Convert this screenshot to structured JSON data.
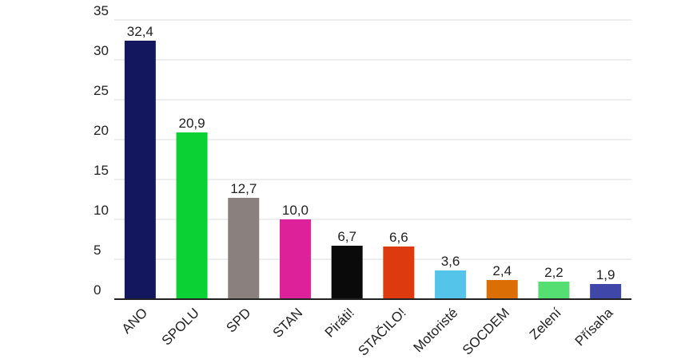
{
  "chart_data": {
    "type": "bar",
    "categories": [
      "ANO",
      "SPOLU",
      "SPD",
      "STAN",
      "Piráti!",
      "STAČILO!",
      "Motoristé",
      "SOCDEM",
      "Zelení",
      "Přísaha"
    ],
    "values": [
      32.4,
      20.9,
      12.7,
      10.0,
      6.7,
      6.6,
      3.6,
      2.4,
      2.2,
      1.9
    ],
    "value_labels": [
      "32,4",
      "20,9",
      "12,7",
      "10,0",
      "6,7",
      "6,6",
      "3,6",
      "2,4",
      "2,2",
      "1,9"
    ],
    "colors": [
      "#13175e",
      "#0bd135",
      "#8a807d",
      "#dd2198",
      "#0a0a0a",
      "#de3a0f",
      "#55c4ea",
      "#dc6e06",
      "#55de71",
      "#3f48a9"
    ],
    "y_ticks": [
      0,
      5,
      10,
      15,
      20,
      25,
      30,
      35
    ],
    "ylim": [
      0,
      35
    ],
    "grid": true,
    "title": "",
    "xlabel": "",
    "ylabel": ""
  }
}
